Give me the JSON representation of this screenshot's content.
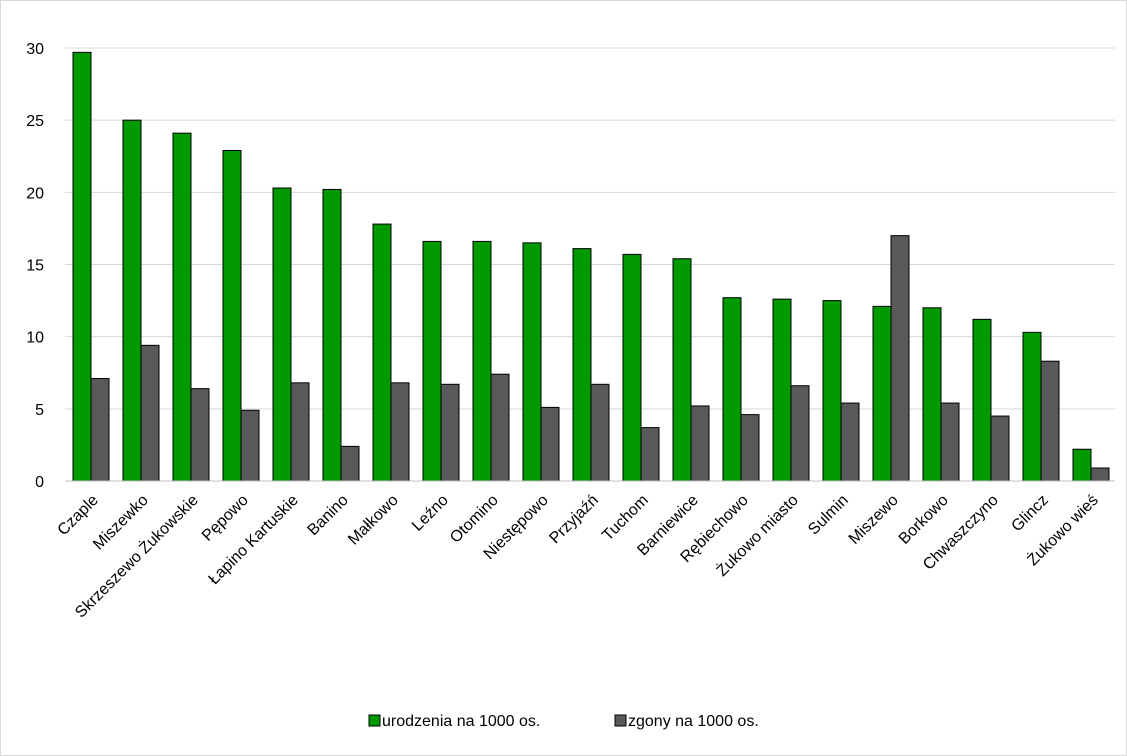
{
  "chart_data": {
    "type": "bar",
    "categories": [
      "Czaple",
      "Miszewko",
      "Skrzeszewo Żukowskie",
      "Pępowo",
      "Łapino Kartuskie",
      "Banino",
      "Małkowo",
      "Leźno",
      "Otomino",
      "Niestępowo",
      "Przyjaźń",
      "Tuchom",
      "Barniewice",
      "Rębiechowo",
      "Żukowo miasto",
      "Sulmin",
      "Miszewo",
      "Borkowo",
      "Chwaszczyno",
      "Glincz",
      "Żukowo wieś"
    ],
    "series": [
      {
        "name": "urodzenia na 1000 os.",
        "color": "#009900",
        "values": [
          29.7,
          25.0,
          24.1,
          22.9,
          20.3,
          20.2,
          17.8,
          16.6,
          16.6,
          16.5,
          16.1,
          15.7,
          15.4,
          12.7,
          12.6,
          12.5,
          12.1,
          12.0,
          11.2,
          10.3,
          2.2
        ]
      },
      {
        "name": "zgony na 1000 os.",
        "color": "#595959",
        "values": [
          7.1,
          9.4,
          6.4,
          4.9,
          6.8,
          2.4,
          6.8,
          6.7,
          7.4,
          5.1,
          6.7,
          3.7,
          5.2,
          4.6,
          6.6,
          5.4,
          17.0,
          5.4,
          4.5,
          8.3,
          0.9
        ]
      }
    ],
    "yticks": [
      "0",
      "5",
      "10",
      "15",
      "20",
      "25",
      "30"
    ],
    "ylim": [
      0,
      30
    ],
    "grid": true,
    "legend_position": "bottom",
    "title": "",
    "xlabel": "",
    "ylabel": ""
  }
}
